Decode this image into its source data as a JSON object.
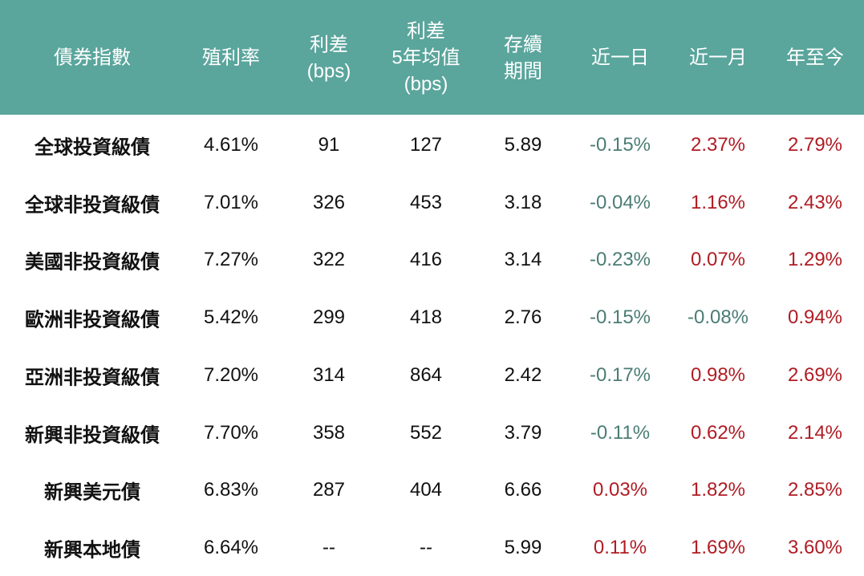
{
  "table": {
    "header": [
      [
        "債券指數"
      ],
      [
        "殖利率"
      ],
      [
        "利差",
        "(bps)"
      ],
      [
        "利差",
        "5年均值",
        "(bps)"
      ],
      [
        "存續",
        "期間"
      ],
      [
        "近一日"
      ],
      [
        "近一月"
      ],
      [
        "年至今"
      ]
    ],
    "rows": [
      [
        "全球投資級債",
        "4.61%",
        "91",
        "127",
        "5.89",
        "-0.15%",
        "2.37%",
        "2.79%"
      ],
      [
        "全球非投資級債",
        "7.01%",
        "326",
        "453",
        "3.18",
        "-0.04%",
        "1.16%",
        "2.43%"
      ],
      [
        "美國非投資級債",
        "7.27%",
        "322",
        "416",
        "3.14",
        "-0.23%",
        "0.07%",
        "1.29%"
      ],
      [
        "歐洲非投資級債",
        "5.42%",
        "299",
        "418",
        "2.76",
        "-0.15%",
        "-0.08%",
        "0.94%"
      ],
      [
        "亞洲非投資級債",
        "7.20%",
        "314",
        "864",
        "2.42",
        "-0.17%",
        "0.98%",
        "2.69%"
      ],
      [
        "新興非投資級債",
        "7.70%",
        "358",
        "552",
        "3.79",
        "-0.11%",
        "0.62%",
        "2.14%"
      ],
      [
        "新興美元債",
        "6.83%",
        "287",
        "404",
        "6.66",
        "0.03%",
        "1.82%",
        "2.85%"
      ],
      [
        "新興本地債",
        "6.64%",
        "--",
        "--",
        "5.99",
        "0.11%",
        "1.69%",
        "3.60%"
      ]
    ]
  }
}
